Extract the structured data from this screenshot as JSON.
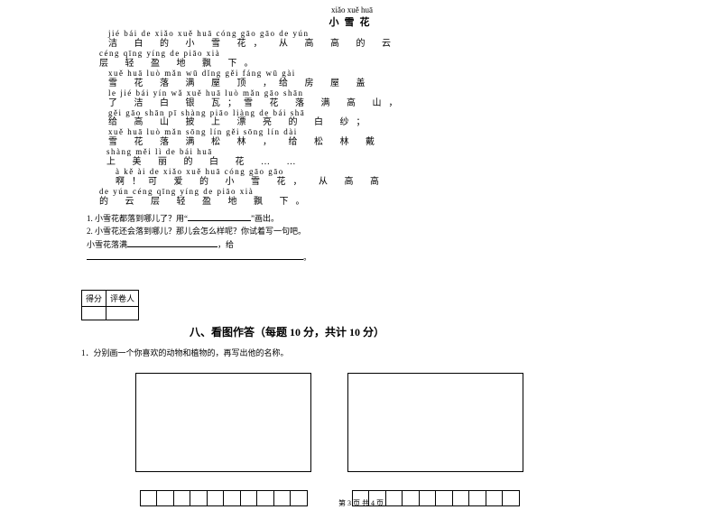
{
  "poem": {
    "title_pinyin": "xiǎo xuě huā",
    "title_hanzi": "小雪花",
    "lines": [
      {
        "pinyin": "jié bái de xiǎo xuě huā cóng gāo gāo de yún",
        "hanzi": "洁 白 的 小 雪 花， 从 高 高 的 云"
      },
      {
        "pinyin": "céng qīng yíng de piāo xià",
        "hanzi": "层  轻  盈  地 飘  下。"
      },
      {
        "pinyin": "xuě huā luò mǎn wū dǐng gěi fáng wū gài",
        "hanzi": "雪  花  落  满  屋  顶 ，给  房  屋  盖"
      },
      {
        "pinyin": "le jié bái yín wǎ  xuě huā luò mǎn gāo shān",
        "hanzi": "了 洁 白 银 瓦；雪 花 落  满  高  山，"
      },
      {
        "pinyin": "gěi gāo shān pī shàng piāo liàng de bái shā",
        "hanzi": "给  高  山  披  上  漂  亮  的 白  纱；"
      },
      {
        "pinyin": "xuě huā luò mǎn sōng lín  gěi sōng lín dài",
        "hanzi": "雪  花  落  满  松  林 ， 给  松  林  戴"
      },
      {
        "pinyin": "shàng měi lì de bái huā",
        "hanzi": "上  美  丽 的 白  花 … …"
      },
      {
        "pinyin": "à  kě ài de xiǎo xuě huā  cóng gāo gāo",
        "hanzi": "啊！可 爱 的 小  雪  花，  从  高  高"
      },
      {
        "pinyin": "de yún céng qīng yíng de piāo xià",
        "hanzi": "的  云  层  轻  盈  地 飘  下。"
      }
    ]
  },
  "questions": {
    "q1_prefix": "1. 小雪花都落到哪儿了？用“",
    "q1_suffix": "”画出。",
    "q2": "2. 小雪花还会落到哪儿？那儿会怎么样呢？你试着写一句吧。",
    "q3_prefix": "小雪花落满",
    "q3_mid": "，给",
    "q3_end": "。"
  },
  "score": {
    "c1": "得分",
    "c2": "评卷人"
  },
  "section8": {
    "title": "八、看图作答（每题 10 分，共计 10 分）",
    "sub": "1．分别画一个你喜欢的动物和植物的，再写出他的名称。"
  },
  "footer": "第 3 页 共 4 页",
  "grid": {
    "cells": 10
  }
}
